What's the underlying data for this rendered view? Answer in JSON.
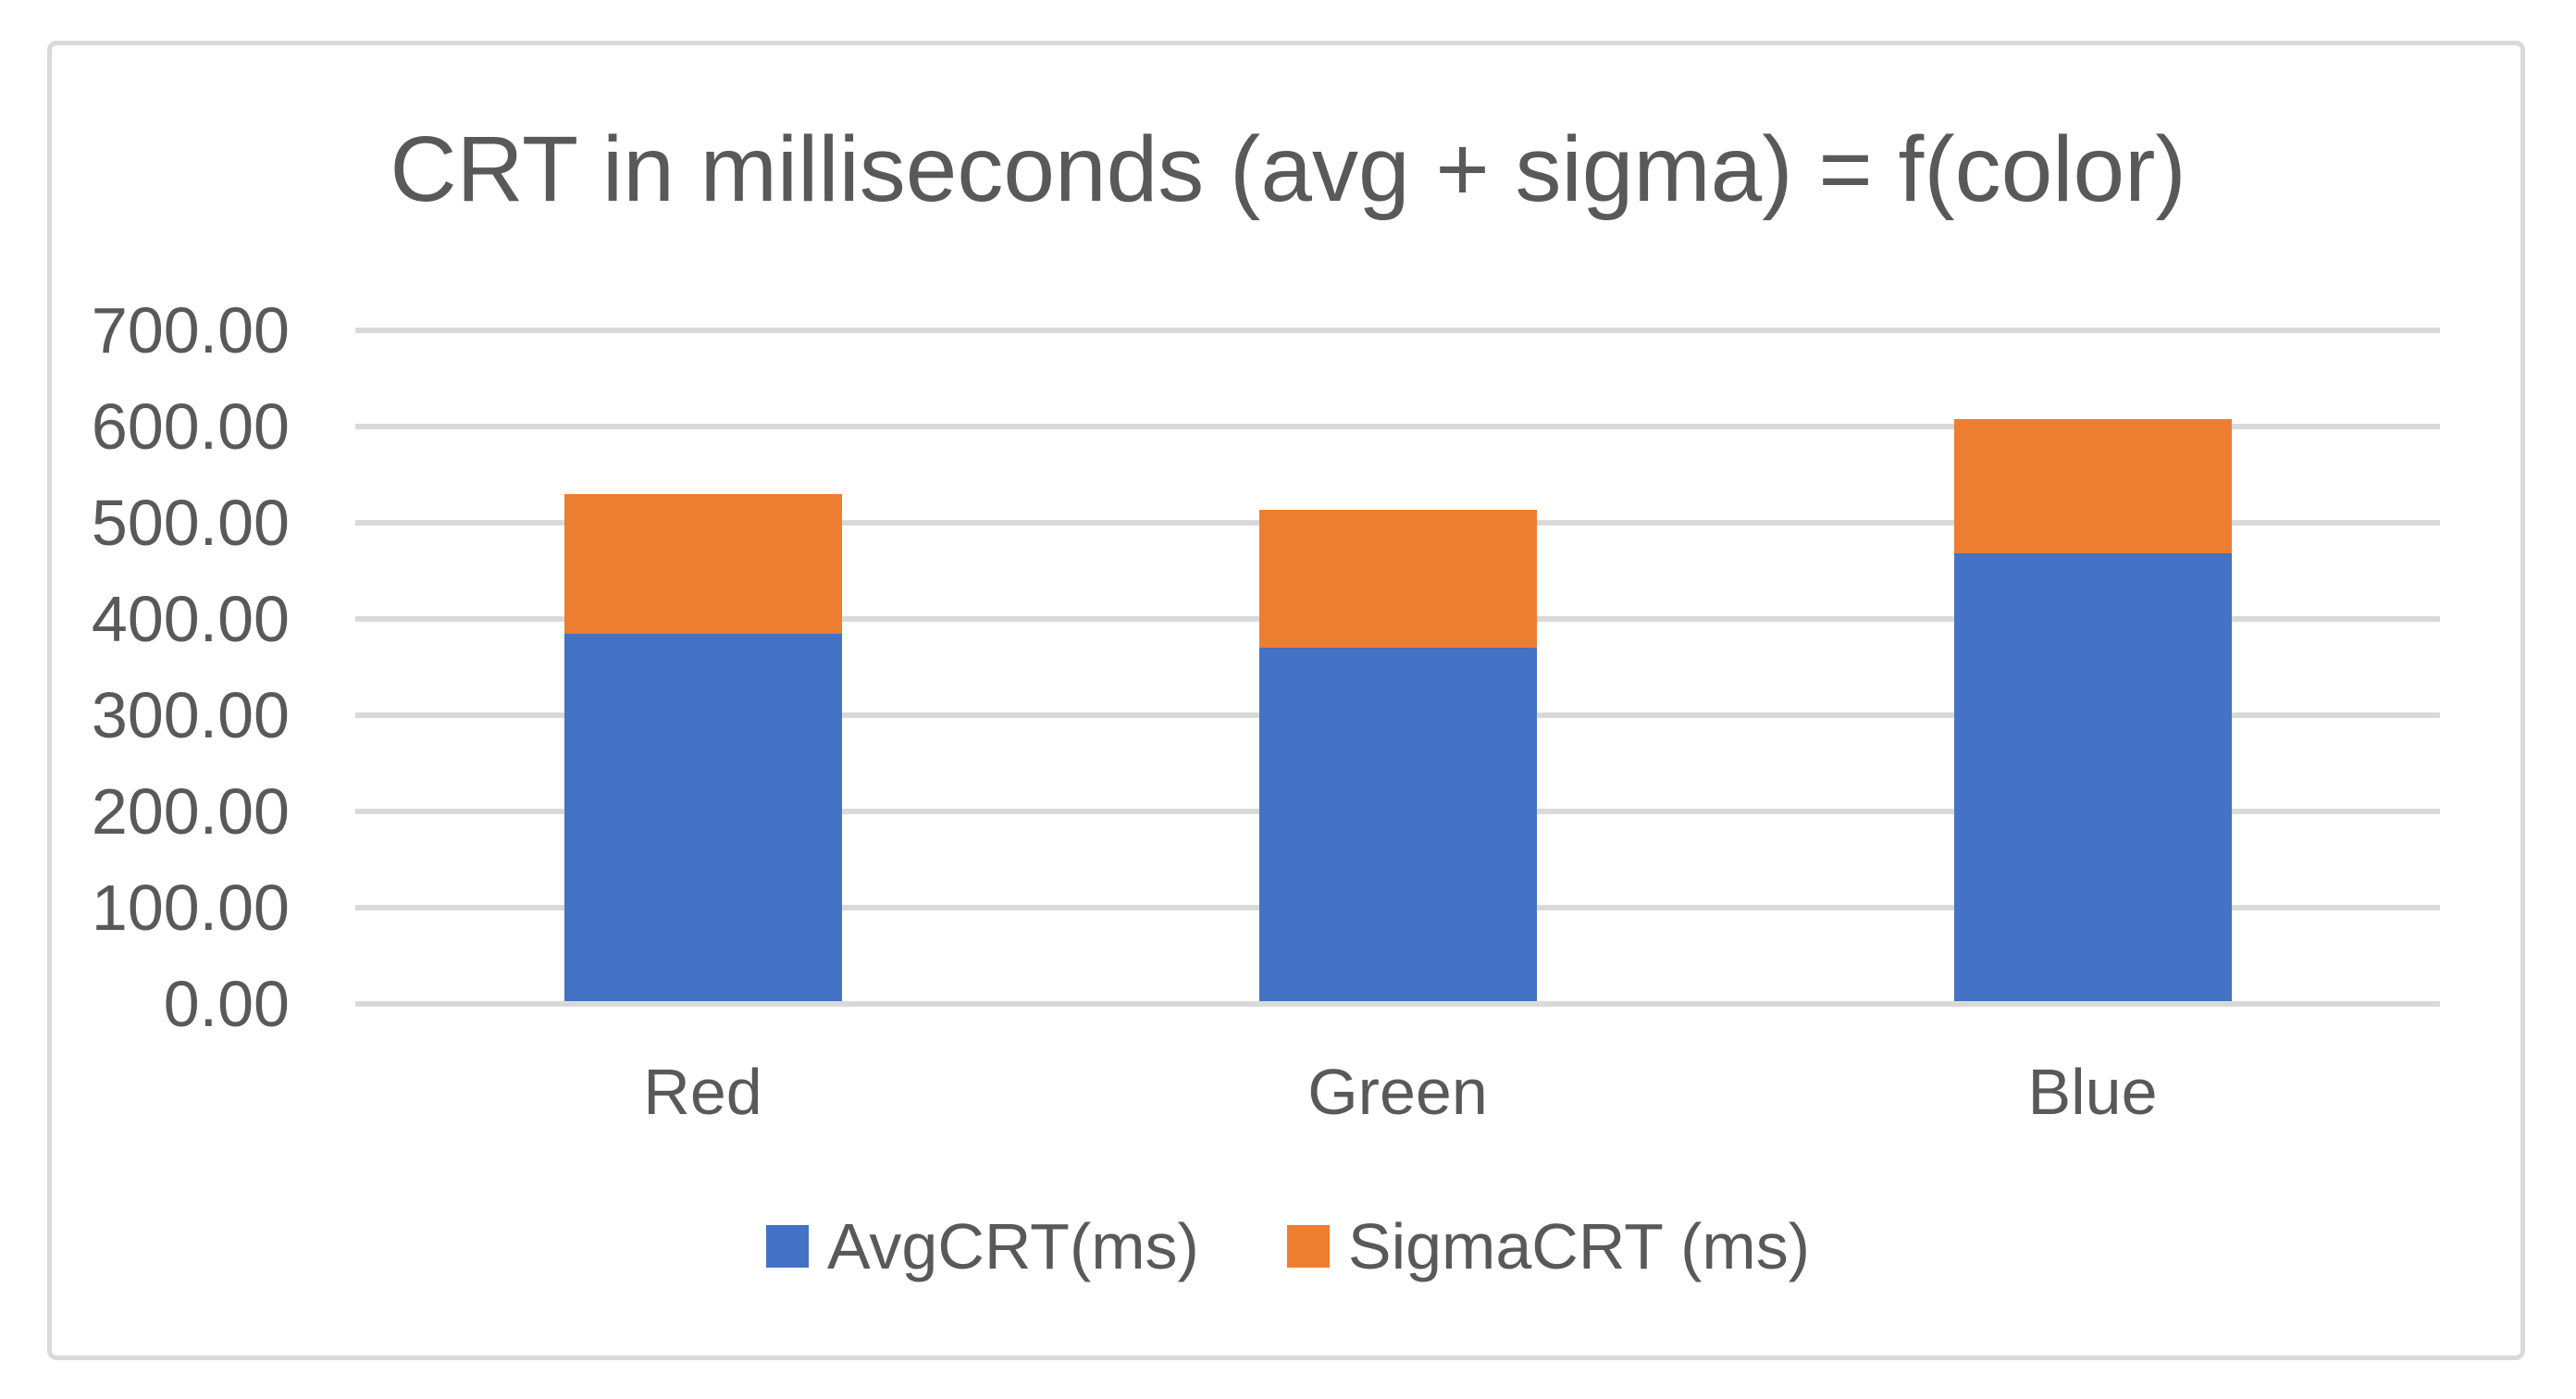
{
  "page": {
    "background": "#FFFFFF"
  },
  "chart_data": {
    "type": "bar",
    "stacked": true,
    "title": "CRT in milliseconds (avg + sigma) = f(color)",
    "categories": [
      "Red",
      "Green",
      "Blue"
    ],
    "series": [
      {
        "name": "AvgCRT(ms)",
        "color": "#4472C4",
        "values": [
          385,
          370,
          468
        ]
      },
      {
        "name": "SigmaCRT (ms)",
        "color": "#ED7D31",
        "values": [
          145,
          143,
          140
        ]
      }
    ],
    "stacked_totals": [
      530,
      513,
      608
    ],
    "xlabel": "",
    "ylabel": "",
    "ylim": [
      0,
      700
    ],
    "ytick_step": 100,
    "ytick_labels": [
      "0.00",
      "100.00",
      "200.00",
      "300.00",
      "400.00",
      "500.00",
      "600.00",
      "700.00"
    ],
    "grid": true,
    "legend_position": "bottom",
    "styles": {
      "text_color": "#595959",
      "grid_color": "#D9D9D9",
      "frame_border_color": "#D9D9D9",
      "background": "#FFFFFF"
    }
  }
}
